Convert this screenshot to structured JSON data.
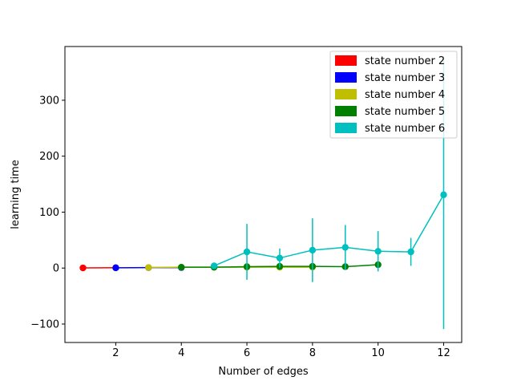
{
  "chart_data": {
    "type": "line",
    "title": "",
    "xlabel": "Number of edges",
    "ylabel": "learning time",
    "xlim": [
      0.45,
      12.55
    ],
    "ylim": [
      -133,
      396
    ],
    "xticks": [
      2,
      4,
      6,
      8,
      10,
      12
    ],
    "yticks": [
      -100,
      0,
      100,
      200,
      300
    ],
    "grid": false,
    "legend_position": "top-right",
    "series": [
      {
        "name": "state number 2",
        "color": "#ff0000",
        "x": [
          1,
          2
        ],
        "y": [
          0.3,
          0.6
        ],
        "err": [
          0,
          0
        ]
      },
      {
        "name": "state number 3",
        "color": "#0000ff",
        "x": [
          2,
          3,
          4
        ],
        "y": [
          0.5,
          0.8,
          0.9
        ],
        "err": [
          0,
          0.5,
          0.5
        ]
      },
      {
        "name": "state number 4",
        "color": "#bfbf00",
        "x": [
          3,
          4,
          5,
          6,
          7,
          8
        ],
        "y": [
          1.0,
          1.5,
          1.5,
          1.5,
          1.5,
          1.5
        ],
        "err": [
          0.5,
          0.5,
          1,
          1,
          1,
          1
        ]
      },
      {
        "name": "state number 5",
        "color": "#008000",
        "x": [
          4,
          5,
          6,
          7,
          8,
          9,
          10
        ],
        "y": [
          1.5,
          1.5,
          2.5,
          3.0,
          3.0,
          2.5,
          6.0
        ],
        "err": [
          0.5,
          1,
          1,
          2,
          2,
          2,
          3
        ]
      },
      {
        "name": "state number 6",
        "color": "#00bfbf",
        "x": [
          5,
          6,
          7,
          8,
          9,
          10,
          11,
          12
        ],
        "y": [
          4,
          29,
          18,
          32,
          37,
          30,
          29,
          131
        ],
        "err": [
          4,
          50,
          17,
          57,
          40,
          36,
          25,
          240
        ]
      }
    ]
  }
}
